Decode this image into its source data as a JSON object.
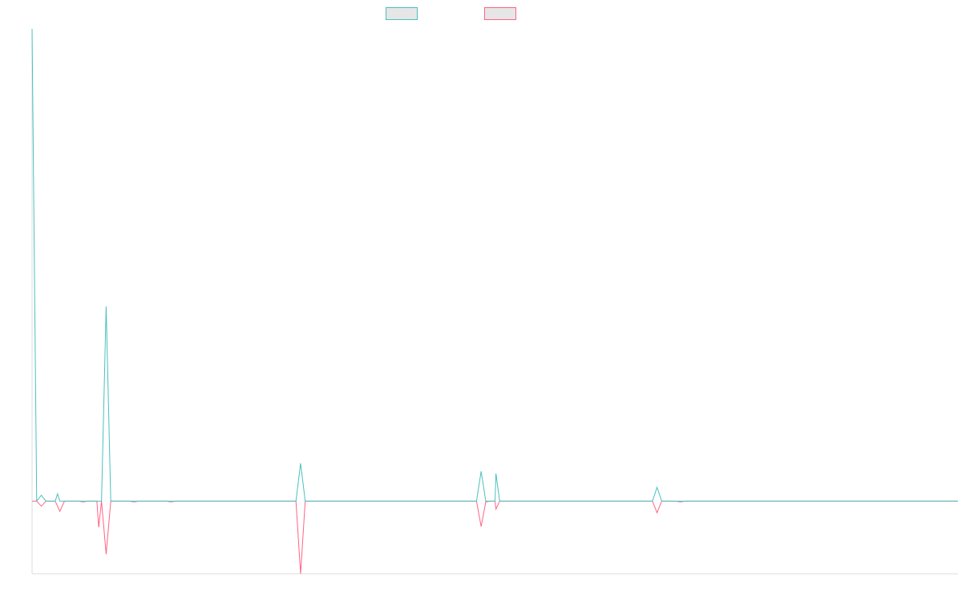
{
  "chart_data": {
    "type": "line",
    "title": "",
    "xlabel": "",
    "ylabel": "",
    "grid": false,
    "legend": "top-center",
    "x": [
      0,
      0.5,
      1,
      1.5,
      2,
      2.5,
      3,
      3.5,
      4,
      4.5,
      5,
      5.5,
      6,
      6.5,
      7,
      7.5,
      8,
      8.5,
      9,
      9.5,
      10,
      10.5,
      11,
      11.5,
      12,
      12.5,
      13,
      13.5,
      14,
      14.5,
      15,
      15.5,
      16,
      16.5,
      17,
      17.5,
      18,
      18.5,
      19,
      19.5,
      20,
      20.5,
      21,
      21.5,
      22,
      22.5,
      23,
      23.5,
      24,
      24.5,
      25,
      25.5,
      26,
      26.5,
      27,
      27.5,
      28,
      28.5,
      29,
      29.5,
      30,
      30.5,
      31,
      31.5,
      32,
      32.5,
      33,
      33.5,
      34,
      34.5,
      35,
      35.5,
      36,
      36.5,
      37,
      37.5,
      38,
      38.5,
      39,
      39.5,
      40,
      40.5,
      41,
      41.5,
      42,
      42.5,
      43,
      43.5,
      44,
      44.5,
      45,
      45.5,
      46,
      46.5,
      47,
      47.5,
      48,
      48.5,
      49,
      49.5,
      50,
      50.5,
      51,
      51.5,
      52,
      52.5,
      53,
      53.5,
      54,
      54.5,
      55,
      55.5,
      56,
      56.5,
      57,
      57.5,
      58,
      58.5,
      59,
      59.5,
      60,
      60.5,
      61,
      61.5,
      62,
      62.5,
      63,
      63.5,
      64,
      64.5,
      65,
      65.5,
      66,
      66.5,
      67,
      67.5,
      68,
      68.5,
      69,
      69.5,
      70,
      70.5,
      71,
      71.5,
      72,
      72.5,
      73,
      73.5,
      74,
      74.5,
      75,
      75.5,
      76,
      76.5,
      77,
      77.5,
      78,
      78.5,
      79,
      79.5,
      80,
      80.5,
      81,
      81.5,
      82,
      82.5,
      83,
      83.5,
      84,
      84.5,
      85,
      85.5,
      86,
      86.5,
      87,
      87.5,
      88,
      88.5,
      89,
      89.5,
      90,
      90.5,
      91,
      91.5,
      92,
      92.5,
      93,
      93.5,
      94,
      94.5,
      95,
      95.5,
      96,
      96.5,
      97,
      97.5,
      98,
      98.5,
      99,
      99.5,
      100
    ],
    "xlim": [
      0,
      100
    ],
    "ylim": [
      -100,
      650
    ],
    "series": [
      {
        "name": "",
        "color": "#4bc0c0",
        "peaks": [
          [
            0,
            650
          ],
          [
            1,
            8
          ],
          [
            2.75,
            10
          ],
          [
            8,
            268
          ],
          [
            29,
            52
          ],
          [
            48.5,
            41
          ],
          [
            50.1,
            38
          ],
          [
            67.5,
            19
          ]
        ]
      },
      {
        "name": "",
        "color": "#ff6384",
        "peaks": [
          [
            1,
            -7
          ],
          [
            3,
            -14
          ],
          [
            5.5,
            -1
          ],
          [
            7.2,
            -36
          ],
          [
            8,
            -73
          ],
          [
            11,
            -1
          ],
          [
            15,
            -1
          ],
          [
            29,
            -100
          ],
          [
            48.5,
            -35
          ],
          [
            49,
            -1
          ],
          [
            50.1,
            -11
          ],
          [
            67.5,
            -16
          ],
          [
            70,
            -1
          ]
        ]
      }
    ]
  }
}
